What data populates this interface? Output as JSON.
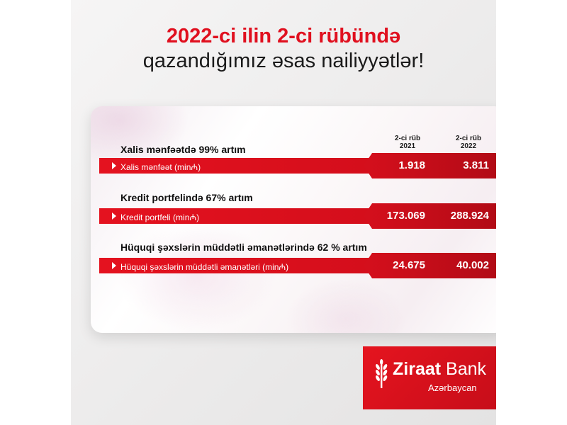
{
  "title": {
    "line1": "2022-ci ilin 2-ci rübündə",
    "line2": "qazandığımız əsas nailiyyətlər!"
  },
  "columns": [
    {
      "line1": "2-ci rüb",
      "line2": "2021"
    },
    {
      "line1": "2-ci rüb",
      "line2": "2022"
    }
  ],
  "metrics": [
    {
      "heading": "Xalis mənfəətdə 99% artım",
      "label": "Xalis mənfəət (min₼)",
      "value_2021": "1.918",
      "value_2022": "3.811"
    },
    {
      "heading": "Kredit portfelində 67% artım",
      "label": "Kredit portfeli (min₼)",
      "value_2021": "173.069",
      "value_2022": "288.924"
    },
    {
      "heading": "Hüquqi şəxslərin müddətli əmanətlərində 62 % artım",
      "label": "Hüquqi şəxslərin müddətli əmanətləri (min₼)",
      "value_2021": "24.675",
      "value_2022": "40.002"
    }
  ],
  "brand": {
    "name_bold": "Ziraat",
    "name_rest": " Bank",
    "subtitle": "Azərbaycan",
    "logo_icon": "wheat-icon",
    "primary_color": "#e0101f"
  }
}
